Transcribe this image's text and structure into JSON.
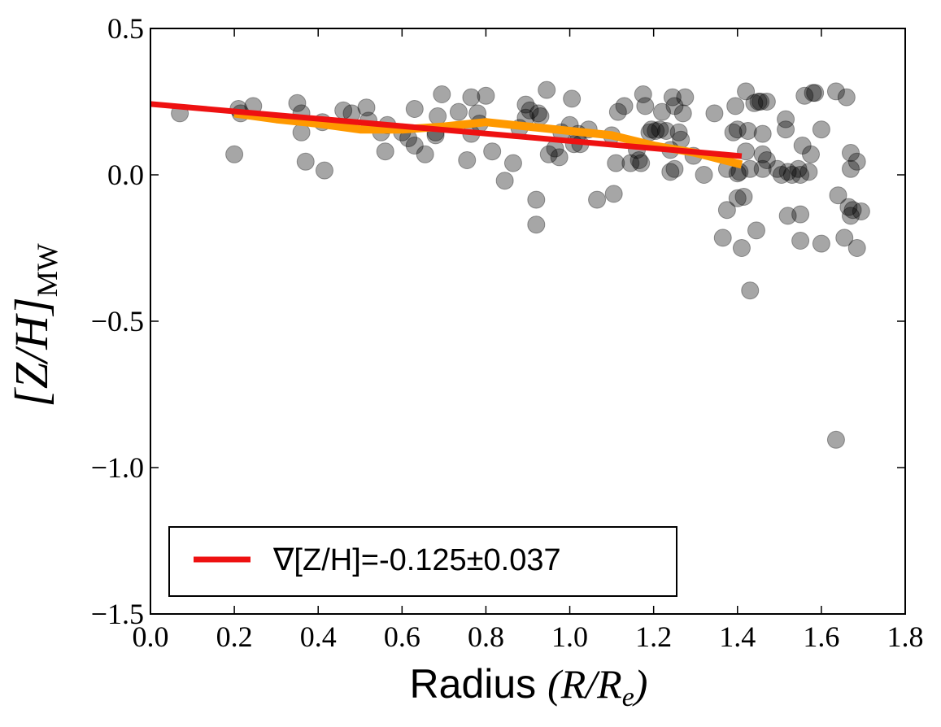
{
  "chart_data": {
    "type": "scatter",
    "xlabel": {
      "text": "Radius ",
      "math": "(R/R",
      "subscript": "e",
      "suffix": ")"
    },
    "ylabel": {
      "text": "[Z/H]",
      "subscript": "MW"
    },
    "xlim": [
      0,
      1.8
    ],
    "ylim": [
      -1.5,
      0.5
    ],
    "xticks": [
      {
        "value": 0,
        "label": "0.0"
      },
      0.2,
      0.4,
      0.6,
      0.8,
      {
        "value": 1,
        "label": "1.0"
      },
      1.2,
      1.4,
      1.6,
      1.8
    ],
    "yticks": [
      {
        "value": -1.5,
        "label": "−1.5"
      },
      {
        "value": -1,
        "label": "−1.0"
      },
      {
        "value": -0.5,
        "label": "−0.5"
      },
      {
        "value": 0,
        "label": "0.0"
      },
      0.5
    ],
    "legend": "lower left",
    "series": [
      {
        "type": "scatter",
        "color": "#000000",
        "opacity": 0.35,
        "x": [
          0.07,
          0.2,
          0.21,
          0.215,
          0.245,
          0.35,
          0.36,
          0.36,
          0.37,
          0.41,
          0.415,
          0.46,
          0.48,
          0.515,
          0.52,
          0.55,
          0.56,
          0.565,
          0.6,
          0.615,
          0.63,
          0.63,
          0.655,
          0.68,
          0.68,
          0.685,
          0.695,
          0.735,
          0.755,
          0.765,
          0.765,
          0.78,
          0.785,
          0.8,
          0.815,
          0.845,
          0.865,
          0.88,
          0.895,
          0.895,
          0.905,
          0.92,
          0.92,
          0.925,
          0.93,
          0.945,
          0.95,
          0.965,
          0.975,
          0.98,
          1.0,
          1.005,
          1.01,
          1.02,
          1.025,
          1.045,
          1.065,
          1.105,
          1.1,
          1.11,
          1.115,
          1.13,
          1.145,
          1.16,
          1.165,
          1.17,
          1.175,
          1.18,
          1.19,
          1.195,
          1.205,
          1.215,
          1.22,
          1.23,
          1.24,
          1.24,
          1.245,
          1.25,
          1.25,
          1.26,
          1.265,
          1.27,
          1.275,
          1.295,
          1.32,
          1.345,
          1.365,
          1.375,
          1.375,
          1.39,
          1.395,
          1.4,
          1.4,
          1.4,
          1.405,
          1.41,
          1.415,
          1.42,
          1.42,
          1.425,
          1.43,
          1.43,
          1.44,
          1.445,
          1.45,
          1.455,
          1.46,
          1.46,
          1.46,
          1.47,
          1.47,
          1.495,
          1.505,
          1.515,
          1.515,
          1.52,
          1.52,
          1.53,
          1.545,
          1.55,
          1.55,
          1.55,
          1.555,
          1.56,
          1.57,
          1.575,
          1.58,
          1.585,
          1.6,
          1.6,
          1.635,
          1.635,
          1.64,
          1.655,
          1.66,
          1.665,
          1.67,
          1.67,
          1.67,
          1.675,
          1.685,
          1.685,
          1.695
        ],
        "values": [
          0.21,
          0.07,
          0.225,
          0.21,
          0.235,
          0.245,
          0.21,
          0.145,
          0.045,
          0.18,
          0.015,
          0.22,
          0.21,
          0.23,
          0.185,
          0.145,
          0.08,
          0.17,
          0.145,
          0.125,
          0.225,
          0.1,
          0.07,
          0.135,
          0.145,
          0.2,
          0.275,
          0.215,
          0.05,
          0.265,
          0.14,
          0.21,
          0.175,
          0.27,
          0.08,
          -0.02,
          0.04,
          0.16,
          0.24,
          0.195,
          0.22,
          -0.085,
          -0.17,
          0.21,
          0.2,
          0.29,
          0.07,
          0.09,
          0.06,
          0.145,
          0.17,
          0.26,
          0.105,
          0.14,
          0.105,
          0.155,
          -0.085,
          -0.065,
          0.135,
          0.04,
          0.215,
          0.235,
          0.04,
          0.085,
          0.05,
          0.04,
          0.275,
          0.235,
          0.145,
          0.155,
          0.15,
          0.155,
          0.215,
          0.15,
          0.085,
          0.01,
          0.265,
          0.02,
          0.235,
          0.145,
          0.12,
          0.21,
          0.265,
          0.065,
          0.0,
          0.21,
          -0.215,
          -0.12,
          0.02,
          0.145,
          0.235,
          -0.08,
          0.155,
          0.005,
          0.01,
          -0.25,
          -0.075,
          0.08,
          0.285,
          0.15,
          -0.395,
          0.02,
          0.245,
          -0.19,
          0.25,
          0.25,
          0.14,
          0.02,
          0.07,
          0.05,
          0.25,
          0.02,
          0.0,
          0.19,
          0.155,
          -0.14,
          0.01,
          0.0,
          0.02,
          -0.135,
          -0.225,
          0.0,
          0.1,
          0.27,
          0.01,
          0.07,
          0.28,
          0.28,
          -0.235,
          0.155,
          -0.905,
          0.285,
          -0.07,
          -0.215,
          0.265,
          -0.11,
          0.02,
          -0.14,
          0.075,
          -0.12,
          -0.25,
          0.045,
          -0.125
        ]
      },
      {
        "type": "line",
        "color": "#ff9900",
        "x": [
          0.2,
          0.3,
          0.4,
          0.5,
          0.6,
          0.7,
          0.8,
          0.9,
          1.0,
          1.1,
          1.2,
          1.3,
          1.41
        ],
        "values": [
          0.21,
          0.19,
          0.175,
          0.155,
          0.155,
          0.165,
          0.18,
          0.165,
          0.15,
          0.135,
          0.1,
          0.075,
          0.035
        ]
      },
      {
        "type": "line",
        "name": "∇[Z/H]=-0.125±0.037",
        "color": "#ee1111",
        "x": [
          0,
          1.41
        ],
        "values": [
          0.242,
          0.064
        ]
      }
    ]
  }
}
